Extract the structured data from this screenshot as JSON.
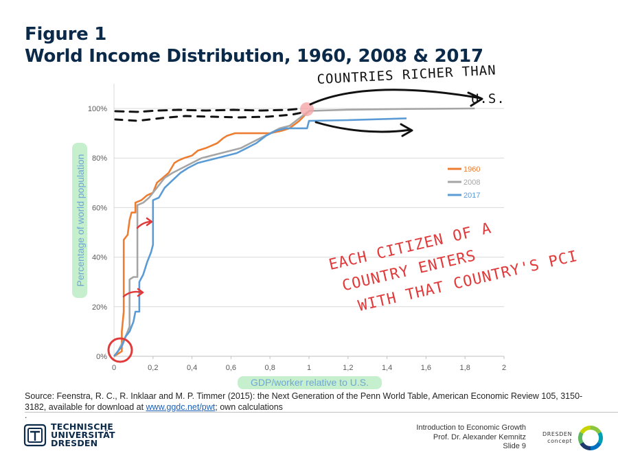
{
  "slide": {
    "title_line1": "Figure 1",
    "title_line2": "World Income Distribution, 1960, 2008 & 2017",
    "source_text": "Source:  Feenstra, R. C., R. Inklaar and M. P. Timmer (2015): the Next Generation of the Penn World Table, American Economic Review 105, 3150-3182, available for download at ",
    "source_link": "www.ggdc.net/pwt",
    "source_tail": "; own calculations",
    "source_dot": ".",
    "course": "Introduction to Economic Growth",
    "lecturer": "Prof. Dr. Alexander Kemnitz",
    "slide_number": "Slide 9",
    "logo_tu_line1": "TECHNISCHE",
    "logo_tu_line2": "UNIVERSITÄT",
    "logo_tu_line3": "DRESDEN",
    "logo_dc_line1": "DRESDEN",
    "logo_dc_line2": "concept"
  },
  "chart_data": {
    "type": "line",
    "xlabel": "GDP/worker relative to U.S.",
    "ylabel": "Percentage of world population",
    "xlim": [
      0,
      2
    ],
    "ylim": [
      0,
      100
    ],
    "x_ticks": [
      "0",
      "0,2",
      "0,4",
      "0,6",
      "0,8",
      "1",
      "1,2",
      "1,4",
      "1,6",
      "1,8",
      "2"
    ],
    "y_ticks": [
      "0%",
      "20%",
      "40%",
      "60%",
      "80%",
      "100%"
    ],
    "grid": "horizontal",
    "legend_position": "right",
    "series": [
      {
        "name": "1960",
        "color": "#ed7d31",
        "points": [
          [
            0.0,
            0
          ],
          [
            0.04,
            2
          ],
          [
            0.04,
            10
          ],
          [
            0.05,
            18
          ],
          [
            0.05,
            47
          ],
          [
            0.07,
            49
          ],
          [
            0.08,
            55
          ],
          [
            0.09,
            58
          ],
          [
            0.11,
            58
          ],
          [
            0.11,
            62
          ],
          [
            0.14,
            63
          ],
          [
            0.17,
            65
          ],
          [
            0.2,
            66
          ],
          [
            0.22,
            70
          ],
          [
            0.25,
            72
          ],
          [
            0.28,
            74
          ],
          [
            0.31,
            78
          ],
          [
            0.33,
            79
          ],
          [
            0.36,
            80
          ],
          [
            0.4,
            81
          ],
          [
            0.43,
            83
          ],
          [
            0.47,
            84
          ],
          [
            0.5,
            85
          ],
          [
            0.53,
            86
          ],
          [
            0.56,
            88
          ],
          [
            0.58,
            89
          ],
          [
            0.62,
            90
          ],
          [
            0.7,
            90
          ],
          [
            0.8,
            90
          ],
          [
            0.86,
            91
          ],
          [
            0.9,
            92
          ],
          [
            0.95,
            95
          ],
          [
            1.0,
            99
          ]
        ]
      },
      {
        "name": "2008",
        "color": "#a5a5a5",
        "points": [
          [
            0.0,
            0
          ],
          [
            0.02,
            2
          ],
          [
            0.04,
            5
          ],
          [
            0.06,
            8
          ],
          [
            0.08,
            12
          ],
          [
            0.08,
            31
          ],
          [
            0.1,
            32
          ],
          [
            0.12,
            32
          ],
          [
            0.12,
            61
          ],
          [
            0.15,
            62
          ],
          [
            0.18,
            64
          ],
          [
            0.2,
            66
          ],
          [
            0.22,
            68
          ],
          [
            0.26,
            72
          ],
          [
            0.3,
            74
          ],
          [
            0.35,
            76
          ],
          [
            0.4,
            78
          ],
          [
            0.45,
            80
          ],
          [
            0.5,
            81
          ],
          [
            0.55,
            82
          ],
          [
            0.6,
            83
          ],
          [
            0.65,
            84
          ],
          [
            0.7,
            86
          ],
          [
            0.75,
            88
          ],
          [
            0.8,
            90
          ],
          [
            0.85,
            92
          ],
          [
            0.9,
            93
          ],
          [
            0.95,
            96
          ],
          [
            1.0,
            99
          ],
          [
            1.2,
            99.5
          ],
          [
            1.5,
            99.8
          ],
          [
            1.85,
            100
          ]
        ]
      },
      {
        "name": "2017",
        "color": "#5b9bd5",
        "points": [
          [
            0.0,
            0
          ],
          [
            0.02,
            2
          ],
          [
            0.04,
            4
          ],
          [
            0.06,
            8
          ],
          [
            0.08,
            10
          ],
          [
            0.1,
            14
          ],
          [
            0.11,
            18
          ],
          [
            0.13,
            18
          ],
          [
            0.13,
            30
          ],
          [
            0.15,
            33
          ],
          [
            0.17,
            38
          ],
          [
            0.19,
            42
          ],
          [
            0.2,
            45
          ],
          [
            0.2,
            63
          ],
          [
            0.23,
            64
          ],
          [
            0.26,
            68
          ],
          [
            0.3,
            71
          ],
          [
            0.34,
            74
          ],
          [
            0.38,
            76
          ],
          [
            0.43,
            78
          ],
          [
            0.48,
            79
          ],
          [
            0.53,
            80
          ],
          [
            0.58,
            81
          ],
          [
            0.63,
            82
          ],
          [
            0.68,
            84
          ],
          [
            0.73,
            86
          ],
          [
            0.78,
            89
          ],
          [
            0.83,
            91
          ],
          [
            0.88,
            92
          ],
          [
            0.93,
            92
          ],
          [
            0.99,
            92
          ],
          [
            1.0,
            95
          ],
          [
            1.2,
            95.3
          ],
          [
            1.5,
            96
          ]
        ]
      }
    ],
    "annotations": [
      "COUNTRIES RICHER THAN U.S.",
      "EACH CITIZEN OF A COUNTRY ENTERS WITH THAT COUNTRY'S PCI"
    ]
  }
}
